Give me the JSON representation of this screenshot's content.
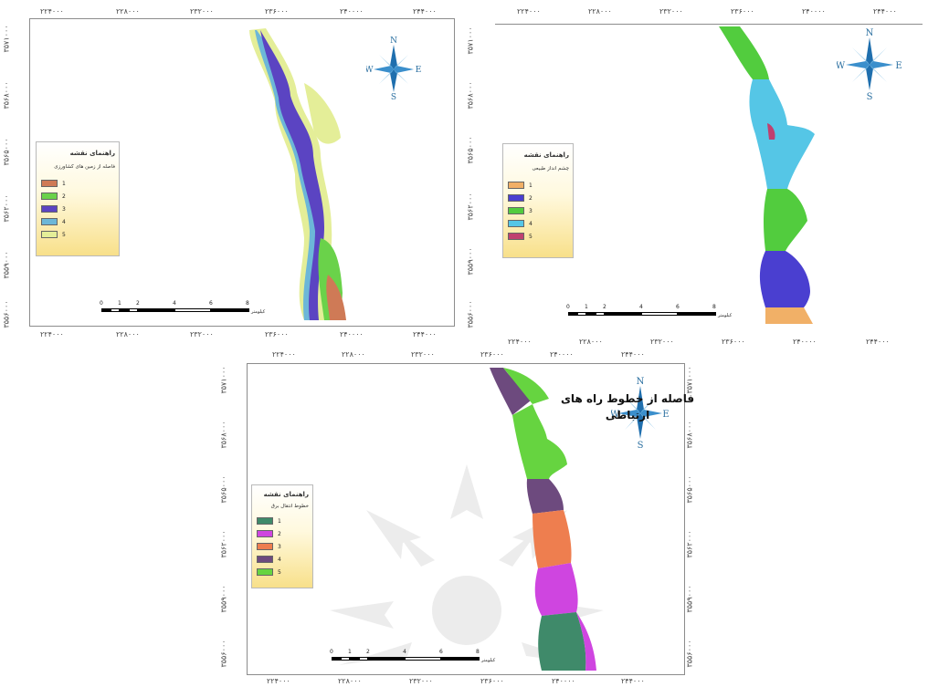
{
  "maps": [
    {
      "id": "map_agriculture",
      "legend_title": "راهنمای نقشه",
      "legend_subtitle": "فاصله از زمین های کشاورزی",
      "legend_items": [
        {
          "label": "1",
          "color": "#cf7a56"
        },
        {
          "label": "2",
          "color": "#6ad24a"
        },
        {
          "label": "3",
          "color": "#5b44c2"
        },
        {
          "label": "4",
          "color": "#6cb7d8"
        },
        {
          "label": "5",
          "color": "#e4ee98"
        }
      ],
      "top_ticks": [
        "۲۲۴۰۰۰",
        "۲۲۸۰۰۰",
        "۲۳۲۰۰۰",
        "۲۳۶۰۰۰",
        "۲۴۰۰۰۰",
        "۲۴۴۰۰۰"
      ],
      "bottom_ticks": [
        "۲۲۴۰۰۰",
        "۲۲۸۰۰۰",
        "۲۳۲۰۰۰",
        "۲۳۶۰۰۰",
        "۲۴۰۰۰۰",
        "۲۴۴۰۰۰"
      ],
      "side_ticks": [
        "۳۵۷۱۰۰۰",
        "۳۵۶۸۰۰۰",
        "۳۵۶۵۰۰۰",
        "۳۵۶۲۰۰۰",
        "۳۵۵۹۰۰۰",
        "۳۵۵۶۰۰۰"
      ],
      "scale_labels": [
        "0",
        "1",
        "2",
        "4",
        "6",
        "8"
      ],
      "scale_unit": "کیلومتر",
      "compass": {
        "n": "N",
        "s": "S",
        "e": "E",
        "w": "W"
      }
    },
    {
      "id": "map_landscape",
      "legend_title": "راهنمای نقشه",
      "legend_subtitle": "چشم انداز طبیعی",
      "legend_items": [
        {
          "label": "1",
          "color": "#f1b067"
        },
        {
          "label": "2",
          "color": "#4a3fd0"
        },
        {
          "label": "3",
          "color": "#52cc3e"
        },
        {
          "label": "4",
          "color": "#55c6e6"
        },
        {
          "label": "5",
          "color": "#c0406f"
        }
      ],
      "top_ticks": [
        "۲۲۴۰۰۰",
        "۲۲۸۰۰۰",
        "۲۳۲۰۰۰",
        "۲۳۶۰۰۰",
        "۲۴۰۰۰۰",
        "۲۴۴۰۰۰"
      ],
      "bottom_ticks": [
        "۲۲۴۰۰۰",
        "۲۲۸۰۰۰",
        "۲۳۲۰۰۰",
        "۲۳۶۰۰۰",
        "۲۴۰۰۰۰",
        "۲۴۴۰۰۰"
      ],
      "side_ticks": [
        "۳۵۷۱۰۰۰",
        "۳۵۶۸۰۰۰",
        "۳۵۶۵۰۰۰",
        "۳۵۶۲۰۰۰",
        "۳۵۵۹۰۰۰",
        "۳۵۵۶۰۰۰"
      ],
      "scale_labels": [
        "0",
        "1",
        "2",
        "4",
        "6",
        "8"
      ],
      "scale_unit": "کیلومتر",
      "compass": {
        "n": "N",
        "s": "S",
        "e": "E",
        "w": "W"
      }
    },
    {
      "id": "map_powerlines",
      "legend_title": "راهنمای نقشه",
      "legend_subtitle": "خطوط انتقال برق",
      "legend_items": [
        {
          "label": "1",
          "color": "#3f8a6a"
        },
        {
          "label": "2",
          "color": "#cf45e0"
        },
        {
          "label": "3",
          "color": "#ee7e4f"
        },
        {
          "label": "4",
          "color": "#6d4a7e"
        },
        {
          "label": "5",
          "color": "#66d440"
        }
      ],
      "top_ticks": [
        "۲۲۴۰۰۰",
        "۲۲۸۰۰۰",
        "۲۳۲۰۰۰",
        "۲۳۶۰۰۰",
        "۲۴۰۰۰۰",
        "۲۴۴۰۰۰"
      ],
      "bottom_ticks": [
        "۲۲۴۰۰۰",
        "۲۲۸۰۰۰",
        "۲۳۲۰۰۰",
        "۲۳۶۰۰۰",
        "۲۴۰۰۰۰",
        "۲۴۴۰۰۰"
      ],
      "side_ticks": [
        "۳۵۷۱۰۰۰",
        "۳۵۶۸۰۰۰",
        "۳۵۶۵۰۰۰",
        "۳۵۶۲۰۰۰",
        "۳۵۵۹۰۰۰",
        "۳۵۵۶۰۰۰"
      ],
      "scale_labels": [
        "0",
        "1",
        "2",
        "4",
        "6",
        "8"
      ],
      "scale_unit": "کیلومتر",
      "compass": {
        "n": "N",
        "s": "S",
        "e": "E",
        "w": "W"
      },
      "caption": "فاصله از خطوط راه های ارتباطی"
    }
  ]
}
